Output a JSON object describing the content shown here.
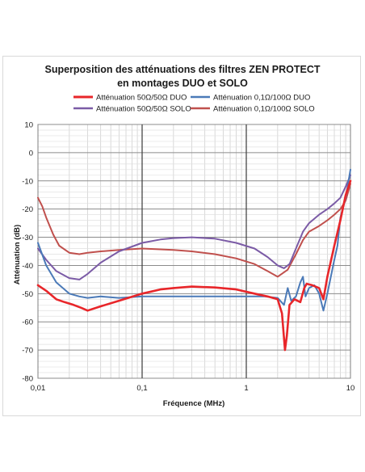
{
  "chart_data": {
    "type": "line",
    "title": [
      "Superposition des atténuations des filtres ZEN PROTECT",
      "en montages DUO et SOLO"
    ],
    "xlabel": "Fréquence (MHz)",
    "ylabel": "Atténuation (dB)",
    "x_scale": "log",
    "xlim": [
      0.01,
      10
    ],
    "ylim": [
      -80,
      10
    ],
    "x_ticks": [
      "0,01",
      "0,1",
      "1",
      "10"
    ],
    "y_ticks": [
      "10",
      "0",
      "-10",
      "-20",
      "-30",
      "-40",
      "-50",
      "-60",
      "-70",
      "-80"
    ],
    "grid": true,
    "legend_position": "top",
    "series": [
      {
        "name": "Atténuation 50Ω/50Ω DUO",
        "color": "#e8262a",
        "x": [
          0.01,
          0.012,
          0.015,
          0.018,
          0.022,
          0.026,
          0.03,
          0.04,
          0.06,
          0.1,
          0.15,
          0.2,
          0.3,
          0.5,
          0.8,
          1.2,
          1.6,
          2.0,
          2.2,
          2.35,
          2.45,
          2.6,
          2.9,
          3.3,
          3.6,
          3.8,
          4.3,
          5.0,
          5.5,
          6.0,
          7.0,
          8.0,
          9.0,
          10.0
        ],
        "y": [
          -47,
          -49,
          -52,
          -53,
          -54,
          -55,
          -56,
          -54.5,
          -52.5,
          -50,
          -48.5,
          -48,
          -47.5,
          -47.8,
          -48.5,
          -50,
          -51,
          -52,
          -57,
          -70,
          -65,
          -54,
          -52,
          -53,
          -48,
          -46.5,
          -47,
          -48,
          -52,
          -44,
          -33,
          -24,
          -15,
          -10
        ]
      },
      {
        "name": "Atténuation  0,1Ω/100Ω DUO",
        "color": "#4b7ab8",
        "x": [
          0.01,
          0.012,
          0.015,
          0.02,
          0.025,
          0.03,
          0.04,
          0.06,
          0.1,
          0.2,
          0.5,
          1.0,
          1.5,
          2.0,
          2.3,
          2.5,
          2.7,
          3.0,
          3.3,
          3.5,
          3.7,
          4.0,
          4.5,
          5.0,
          5.5,
          6.0,
          7.0,
          7.5,
          8.0,
          9.0,
          10.0
        ],
        "y": [
          -32,
          -40,
          -46,
          -50,
          -51,
          -51.5,
          -51,
          -51.5,
          -51,
          -51,
          -51,
          -51,
          -51,
          -51.5,
          -54,
          -48,
          -52.5,
          -51,
          -46,
          -44,
          -51,
          -48,
          -47,
          -50,
          -56,
          -50,
          -38,
          -33,
          -23,
          -16,
          -6
        ]
      },
      {
        "name": "Atténuation 50Ω/50Ω SOLO",
        "color": "#7b5ba6",
        "x": [
          0.01,
          0.012,
          0.015,
          0.02,
          0.025,
          0.03,
          0.04,
          0.06,
          0.1,
          0.15,
          0.2,
          0.3,
          0.5,
          0.8,
          1.2,
          1.6,
          2.0,
          2.3,
          2.6,
          3.0,
          3.5,
          4.0,
          5.0,
          6.0,
          7.0,
          8.0,
          9.0,
          10.0
        ],
        "y": [
          -34,
          -38,
          -42,
          -44.5,
          -45,
          -43,
          -39,
          -35,
          -32,
          -30.8,
          -30.3,
          -30,
          -30.5,
          -32,
          -34,
          -37,
          -40,
          -41,
          -39.5,
          -34,
          -28,
          -25,
          -22,
          -20,
          -18,
          -16,
          -12,
          -8
        ]
      },
      {
        "name": "Atténuation 0,1Ω/100Ω SOLO",
        "color": "#c0504d",
        "x": [
          0.01,
          0.011,
          0.012,
          0.014,
          0.016,
          0.02,
          0.025,
          0.03,
          0.04,
          0.06,
          0.1,
          0.2,
          0.3,
          0.5,
          0.8,
          1.2,
          1.6,
          2.0,
          2.5,
          3.0,
          3.5,
          4.0,
          5.0,
          6.0,
          7.0,
          8.0,
          9.0,
          10.0
        ],
        "y": [
          -16,
          -19,
          -23,
          -29,
          -33,
          -35.5,
          -36,
          -35.5,
          -35,
          -34.5,
          -34,
          -34.5,
          -35,
          -36,
          -37.5,
          -39.5,
          -42,
          -44,
          -41.5,
          -36,
          -31,
          -28,
          -26,
          -24,
          -22,
          -20,
          -17,
          -11
        ]
      }
    ]
  }
}
